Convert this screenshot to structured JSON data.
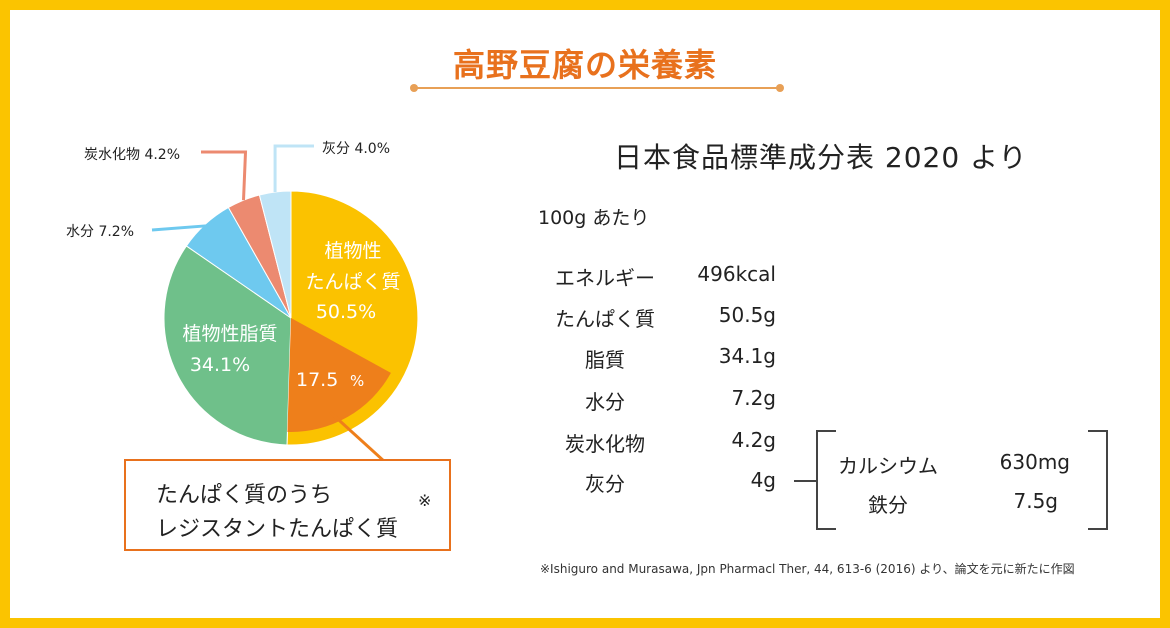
{
  "title": "高野豆腐の栄養素",
  "chart_data": {
    "type": "pie",
    "title": "高野豆腐の栄養素",
    "unit": "%",
    "slices": [
      {
        "label": "植物性たんぱく質",
        "value": 50.5,
        "color": "#fbc200"
      },
      {
        "label": "植物性脂質",
        "value": 34.1,
        "color": "#6fc08a"
      },
      {
        "label": "水分",
        "value": 7.2,
        "color": "#6ec9ef"
      },
      {
        "label": "炭水化物",
        "value": 4.2,
        "color": "#ec8a70"
      },
      {
        "label": "灰分",
        "value": 4.0,
        "color": "#bfe4f6"
      }
    ],
    "sub_slice": {
      "label": "レジスタントたんぱく質",
      "value": 17.5,
      "color": "#ee7f1b",
      "parent": "植物性たんぱく質"
    },
    "inner_labels": {
      "protein_line1": "植物性",
      "protein_line2": "たんぱく質",
      "protein_value": "50.5%",
      "fat_label": "植物性脂質",
      "fat_value": "34.1%",
      "resistant_number": "17.5",
      "resistant_unit": "%"
    },
    "outer_labels": {
      "ash": "灰分 4.0%",
      "carbs": "炭水化物 4.2%",
      "water": "水分 7.2%"
    }
  },
  "callout": {
    "line1": "たんぱく質のうち",
    "line2": "レジスタントたんぱく質",
    "mark": "※"
  },
  "table": {
    "title": "日本食品標準成分表 2020 より",
    "per_unit": "100g あたり",
    "rows": [
      {
        "name": "エネルギー",
        "value": "496kcal"
      },
      {
        "name": "たんぱく質",
        "value": "50.5g"
      },
      {
        "name": "脂質",
        "value": "34.1g"
      },
      {
        "name": "水分",
        "value": "7.2g"
      },
      {
        "name": "炭水化物",
        "value": "4.2g"
      },
      {
        "name": "灰分",
        "value": "4g"
      }
    ],
    "minerals": [
      {
        "name": "カルシウム",
        "value": "630mg"
      },
      {
        "name": "鉄分",
        "value": "7.5g"
      }
    ]
  },
  "source_note": "※Ishiguro and Murasawa, Jpn Pharmacl Ther, 44, 613-6 (2016) より、論文を元に新たに作図",
  "colors": {
    "accent": "#e8711d",
    "frame": "#fbc400",
    "white_label": "#ffffff"
  }
}
